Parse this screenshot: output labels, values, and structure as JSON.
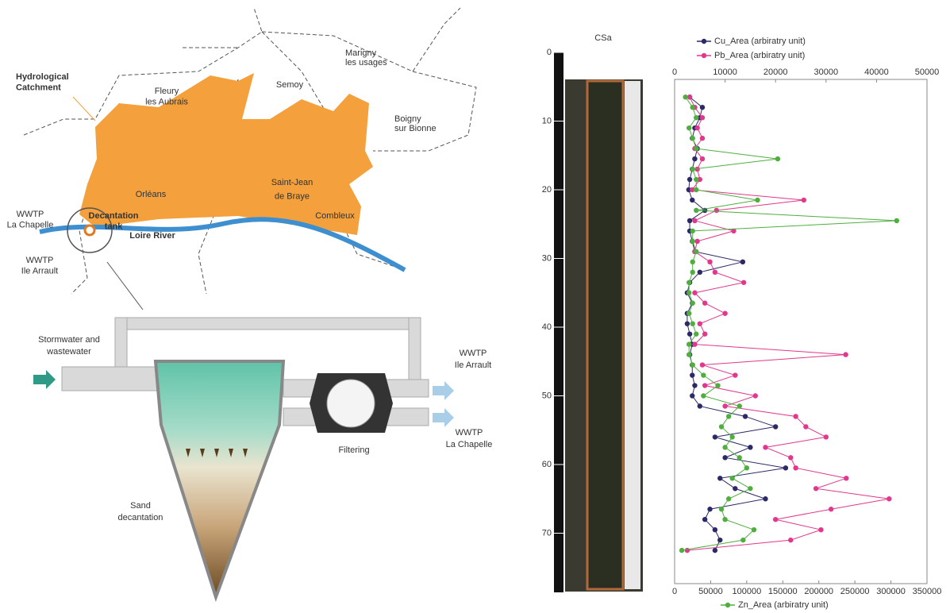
{
  "diagram": {
    "map": {
      "catchment": [
        "Hydrological",
        "Catchment"
      ],
      "fleury": [
        "Fleury",
        "les Aubrais"
      ],
      "semoy": [
        "Semoy"
      ],
      "marigny": [
        "Marigny",
        "les usages"
      ],
      "boigny": [
        "Boigny",
        "sur Bionne"
      ],
      "orleans": [
        "Orléans"
      ],
      "saint_jean": [
        "Saint-Jean",
        "de Braye"
      ],
      "combleux": [
        "Combleux"
      ],
      "tank": [
        "Decantation",
        "tank"
      ],
      "river": [
        "Loire River"
      ],
      "wwtp_chapelle": [
        "WWTP",
        "La Chapelle"
      ],
      "wwtp_arrault": [
        "WWTP",
        "Ile Arrault"
      ]
    },
    "scheme": {
      "inflow": [
        "Stormwater and",
        "wastewater"
      ],
      "out_arrault": [
        "WWTP",
        "Ile Arrault"
      ],
      "out_chapelle": [
        "WWTP",
        "La Chapelle"
      ],
      "filtering": [
        "Filtering"
      ],
      "sand": [
        "Sand",
        "decantation"
      ]
    }
  },
  "chart_data": {
    "type": "line",
    "core_title": "CSa",
    "ylim": [
      0,
      78.5
    ],
    "yticks": [
      0,
      10,
      20,
      30,
      40,
      50,
      60,
      70
    ],
    "xlim": [
      0,
      50000
    ],
    "xticks": [
      0,
      10000,
      20000,
      30000,
      40000,
      50000
    ],
    "x2lim": [
      0,
      350000
    ],
    "x2ticks": [
      0,
      50000,
      100000,
      150000,
      200000,
      250000,
      300000,
      350000
    ],
    "depth": [
      6.5,
      8,
      9.5,
      11,
      12.5,
      14,
      15.5,
      17,
      18.5,
      20,
      21.5,
      23,
      24.5,
      26,
      27.5,
      29,
      30.5,
      32,
      33.5,
      35,
      36.5,
      38,
      39.5,
      41,
      42.5,
      44,
      45.5,
      47,
      48.5,
      50,
      51.5,
      53,
      54.5,
      56,
      57.5,
      59,
      60.5,
      62,
      63.5,
      65,
      66.5,
      68,
      69.5,
      71,
      72.5
    ],
    "series": [
      {
        "name": "Cu_Area (arbiratry unit)",
        "color": "#2b2a66",
        "axis": "x",
        "values": [
          3000,
          5500,
          5000,
          4000,
          3500,
          4500,
          4000,
          3500,
          3000,
          2800,
          3500,
          6000,
          3000,
          3000,
          3500,
          4000,
          13500,
          5000,
          3000,
          2500,
          3500,
          2500,
          2500,
          3000,
          3500,
          3000,
          3500,
          3500,
          4000,
          3500,
          5000,
          14000,
          20000,
          8000,
          15000,
          10000,
          22000,
          9000,
          12000,
          18000,
          7000,
          6000,
          8000,
          9000,
          8000
        ]
      },
      {
        "name": "Pb_Area (arbiratry unit)",
        "color": "#e0388c",
        "axis": "x",
        "values": [
          3000,
          4000,
          5500,
          4500,
          5500,
          4000,
          5500,
          4500,
          5000,
          3500,
          25600,
          8300,
          4000,
          11700,
          4500,
          4000,
          7000,
          8000,
          13700,
          4000,
          6000,
          10000,
          5000,
          6000,
          4000,
          33900,
          5500,
          12000,
          6000,
          16000,
          10000,
          24000,
          26000,
          30000,
          18000,
          23000,
          24000,
          34000,
          28000,
          42500,
          31000,
          20000,
          29000,
          23000,
          2500
        ]
      },
      {
        "name": "Zn_Area (arbiratry unit)",
        "color": "#4fae3f",
        "axis": "x2",
        "values": [
          15000,
          25000,
          30000,
          20000,
          25000,
          30000,
          143000,
          25000,
          30000,
          30000,
          115000,
          30000,
          308000,
          25000,
          25000,
          30000,
          25000,
          25000,
          20000,
          20000,
          25000,
          20000,
          25000,
          30000,
          20000,
          20000,
          25000,
          40000,
          60000,
          40000,
          90000,
          75000,
          65000,
          80000,
          70000,
          90000,
          100000,
          80000,
          105000,
          75000,
          65000,
          70000,
          110000,
          95000,
          10000
        ]
      }
    ]
  }
}
